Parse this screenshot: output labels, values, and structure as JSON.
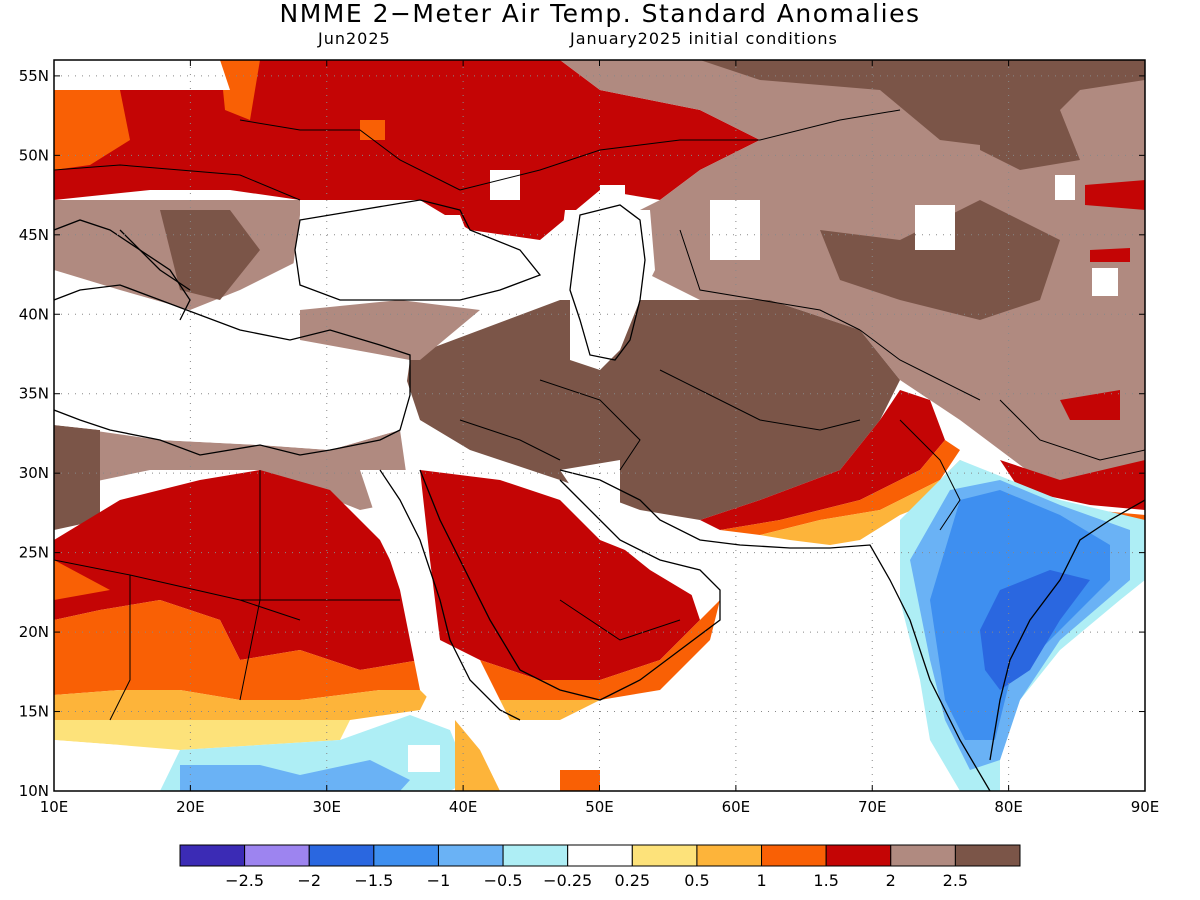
{
  "title": "NMME 2−Meter Air Temp. Standard Anomalies",
  "subtitle_left": "Jun2025",
  "subtitle_right": "January2025 initial conditions",
  "map": {
    "lon_range": [
      10,
      90
    ],
    "lat_range": [
      10,
      56
    ],
    "lon_ticks": [
      "10E",
      "20E",
      "30E",
      "40E",
      "50E",
      "60E",
      "70E",
      "80E",
      "90E"
    ],
    "lat_ticks": [
      "10N",
      "15N",
      "20N",
      "25N",
      "30N",
      "35N",
      "40N",
      "45N",
      "50N",
      "55N"
    ]
  },
  "colorbar": {
    "colors": [
      "#3b2bb5",
      "#9d84f0",
      "#2a67e0",
      "#3e8ff0",
      "#6ab2f5",
      "#aeeef5",
      "#ffffff",
      "#fde27a",
      "#fdb43a",
      "#f96005",
      "#c40505",
      "#b08a80",
      "#7b5548"
    ],
    "labels": [
      "−2.5",
      "−2",
      "−1.5",
      "−1",
      "−0.5",
      "−0.25",
      "0.25",
      "0.5",
      "1",
      "1.5",
      "2",
      "2.5"
    ]
  }
}
